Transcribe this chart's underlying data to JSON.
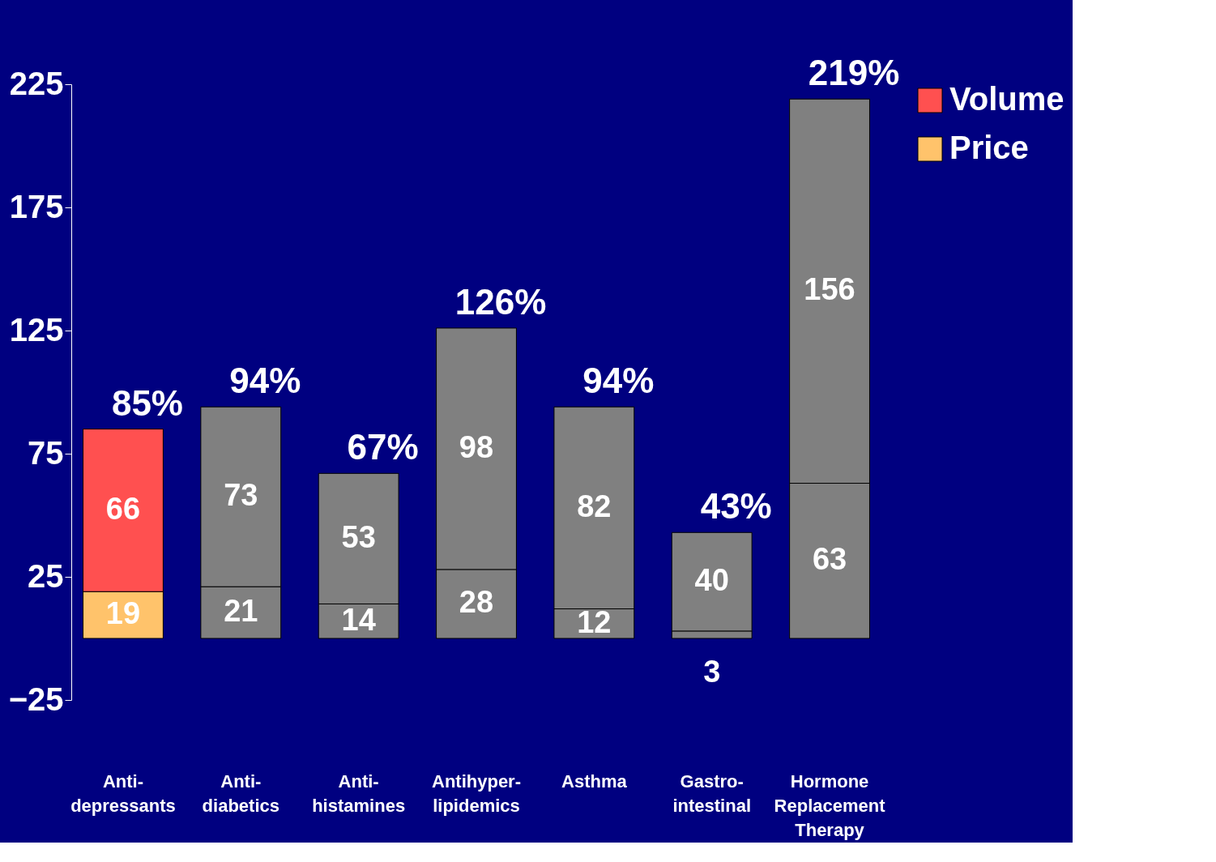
{
  "chart_data": {
    "type": "bar",
    "stacked": true,
    "categories": [
      "Anti-depressants",
      "Anti-diabetics",
      "Anti-histamines",
      "Antihyper-lipidemics",
      "Asthma",
      "Gastro-intestinal",
      "Hormone Replacement Therapy"
    ],
    "series": [
      {
        "name": "Price",
        "color": "#ffc36b",
        "colors": [
          "#ffc36b",
          "#808080",
          "#808080",
          "#808080",
          "#808080",
          "#808080",
          "#808080"
        ],
        "values": [
          19,
          21,
          14,
          28,
          12,
          3,
          63
        ]
      },
      {
        "name": "Volume",
        "color": "#ff5050",
        "colors": [
          "#ff5050",
          "#808080",
          "#808080",
          "#808080",
          "#808080",
          "#808080",
          "#808080"
        ],
        "values": [
          66,
          73,
          53,
          98,
          82,
          40,
          156
        ]
      }
    ],
    "totals": [
      "85%",
      "94%",
      "67%",
      "126%",
      "94%",
      "43%",
      "219%"
    ],
    "data_labels": true,
    "ylim": [
      -25,
      225
    ],
    "yticks": [
      -25,
      25,
      75,
      125,
      175,
      225
    ],
    "grid": false,
    "legend": "top right"
  }
}
